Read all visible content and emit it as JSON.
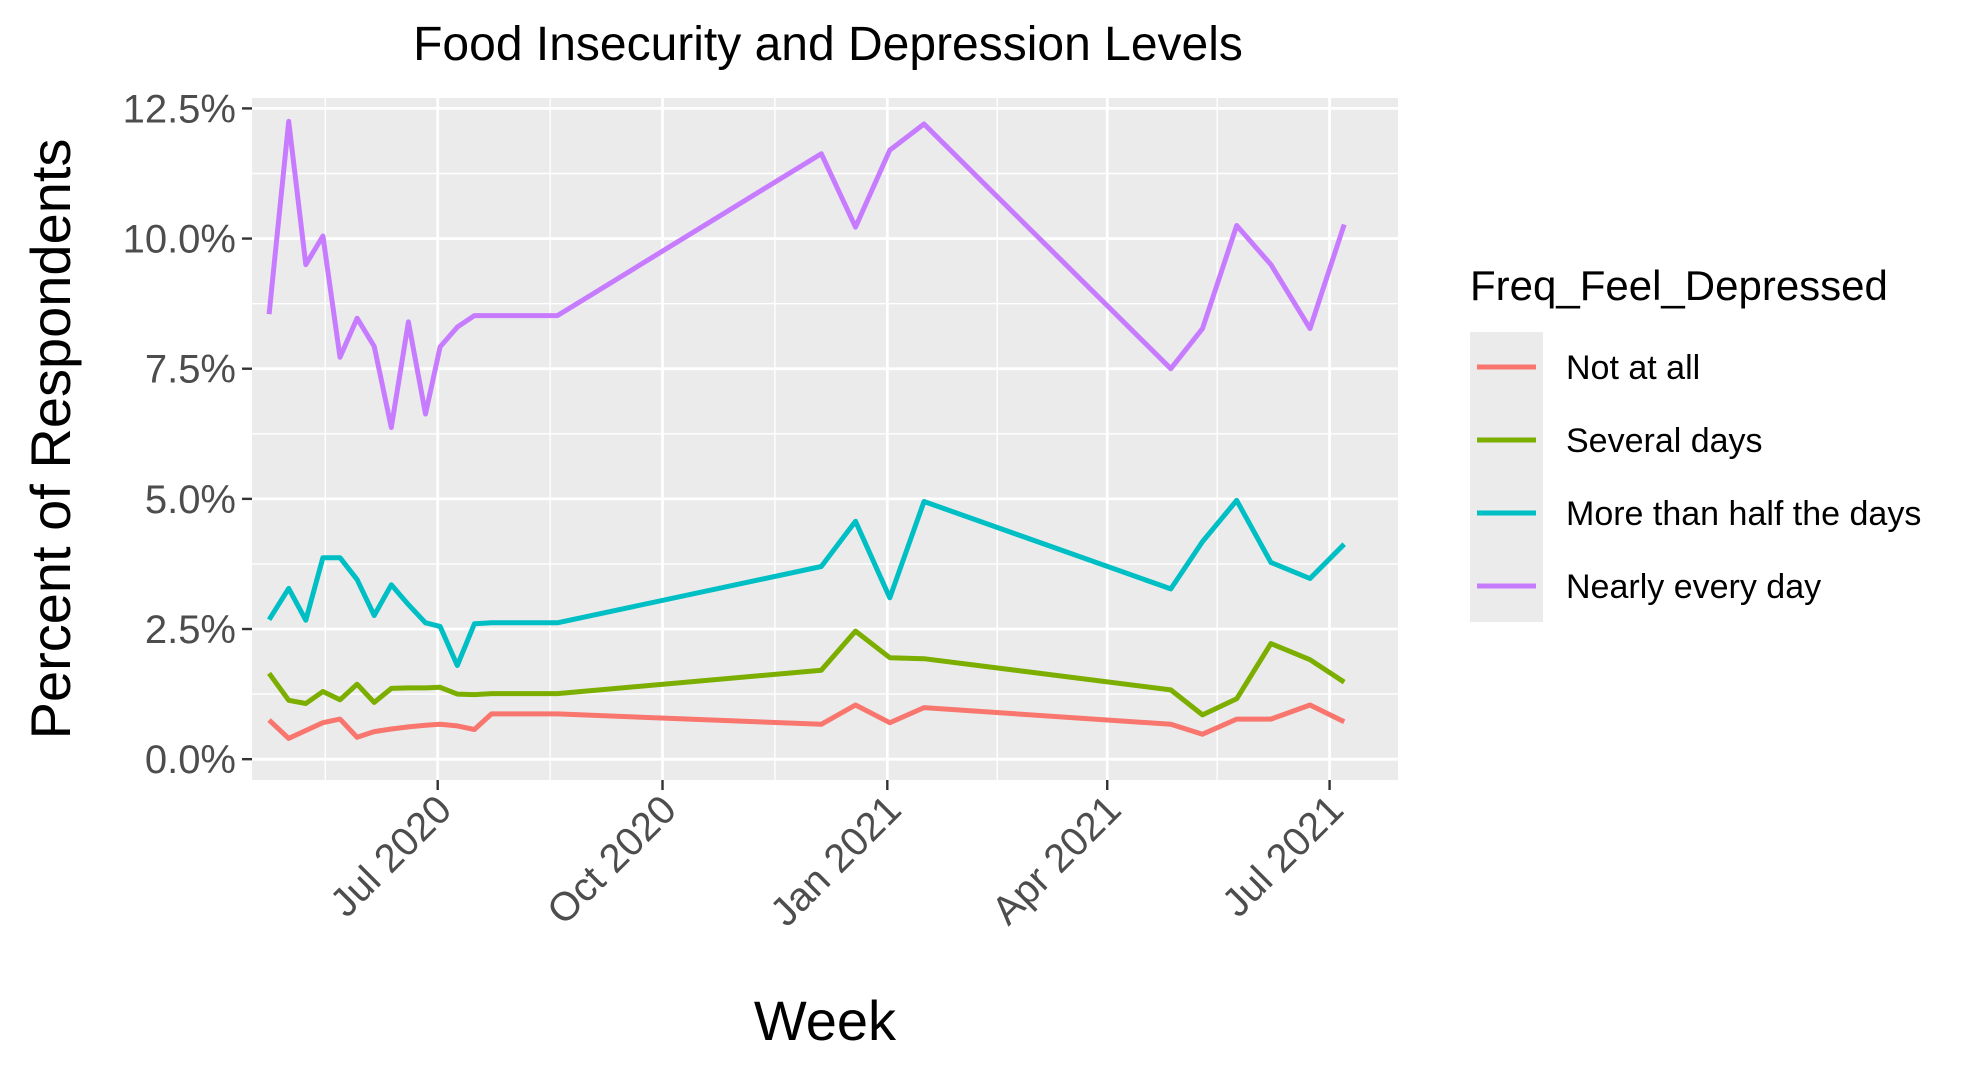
{
  "chart_data": {
    "type": "line",
    "title": "Food Insecurity and Depression Levels",
    "xlabel": "Week",
    "ylabel": "Percent of Respondents",
    "x_axis": {
      "type": "date",
      "range": [
        "2020-04-16",
        "2021-07-29"
      ],
      "ticks": [
        {
          "date": "2020-07-01",
          "label": "Jul 2020"
        },
        {
          "date": "2020-10-01",
          "label": "Oct 2020"
        },
        {
          "date": "2021-01-01",
          "label": "Jan 2021"
        },
        {
          "date": "2021-04-01",
          "label": "Apr 2021"
        },
        {
          "date": "2021-07-01",
          "label": "Jul 2021"
        }
      ],
      "minor_ticks": [
        "2020-05-16",
        "2020-08-16",
        "2020-11-16",
        "2021-02-15",
        "2021-05-16"
      ]
    },
    "y_axis": {
      "range": [
        -0.4,
        12.7
      ],
      "ticks": [
        {
          "value": 0,
          "label": "0.0%"
        },
        {
          "value": 2.5,
          "label": "2.5%"
        },
        {
          "value": 5,
          "label": "5.0%"
        },
        {
          "value": 7.5,
          "label": "7.5%"
        },
        {
          "value": 10,
          "label": "10.0%"
        },
        {
          "value": 12.5,
          "label": "12.5%"
        }
      ],
      "minor_ticks": [
        1.25,
        3.75,
        6.25,
        8.75,
        11.25
      ]
    },
    "grid": true,
    "legend_title": "Freq_Feel_Depressed",
    "legend_position": "right",
    "x": [
      "2020-04-23",
      "2020-05-01",
      "2020-05-08",
      "2020-05-15",
      "2020-05-22",
      "2020-05-29",
      "2020-06-05",
      "2020-06-12",
      "2020-06-19",
      "2020-06-26",
      "2020-07-02",
      "2020-07-09",
      "2020-07-16",
      "2020-07-23",
      "2020-08-19",
      "2020-12-05",
      "2020-12-19",
      "2021-01-02",
      "2021-01-16",
      "2021-04-27",
      "2021-05-10",
      "2021-05-24",
      "2021-06-07",
      "2021-06-23",
      "2021-07-07"
    ],
    "series": [
      {
        "name": "Not at all",
        "color": "#F8766D",
        "values": [
          0.75,
          0.4,
          0.55,
          0.7,
          0.77,
          0.42,
          0.53,
          0.58,
          0.62,
          0.65,
          0.67,
          0.64,
          0.57,
          0.87,
          0.87,
          0.67,
          1.04,
          0.7,
          0.99,
          0.67,
          0.48,
          0.77,
          0.77,
          1.04,
          0.72
        ]
      },
      {
        "name": "Several days",
        "color": "#7CAE00",
        "values": [
          1.65,
          1.13,
          1.07,
          1.3,
          1.14,
          1.44,
          1.09,
          1.36,
          1.37,
          1.37,
          1.38,
          1.25,
          1.24,
          1.26,
          1.26,
          1.71,
          2.46,
          1.95,
          1.93,
          1.33,
          0.85,
          1.16,
          2.22,
          1.91,
          1.48
        ]
      },
      {
        "name": "More than half the days",
        "color": "#00BFC4",
        "values": [
          2.68,
          3.28,
          2.67,
          3.87,
          3.87,
          3.45,
          2.76,
          3.35,
          2.97,
          2.62,
          2.55,
          1.8,
          2.6,
          2.62,
          2.62,
          3.7,
          4.57,
          3.1,
          4.95,
          3.27,
          4.18,
          4.97,
          3.78,
          3.47,
          4.13
        ]
      },
      {
        "name": "Nearly every day",
        "color": "#C77CFF",
        "values": [
          8.55,
          12.25,
          9.5,
          10.05,
          7.72,
          8.47,
          7.93,
          6.37,
          8.4,
          6.63,
          7.92,
          8.3,
          8.52,
          8.52,
          8.52,
          11.63,
          10.22,
          11.7,
          12.2,
          7.5,
          8.27,
          10.25,
          9.5,
          8.27,
          10.27
        ]
      }
    ]
  }
}
